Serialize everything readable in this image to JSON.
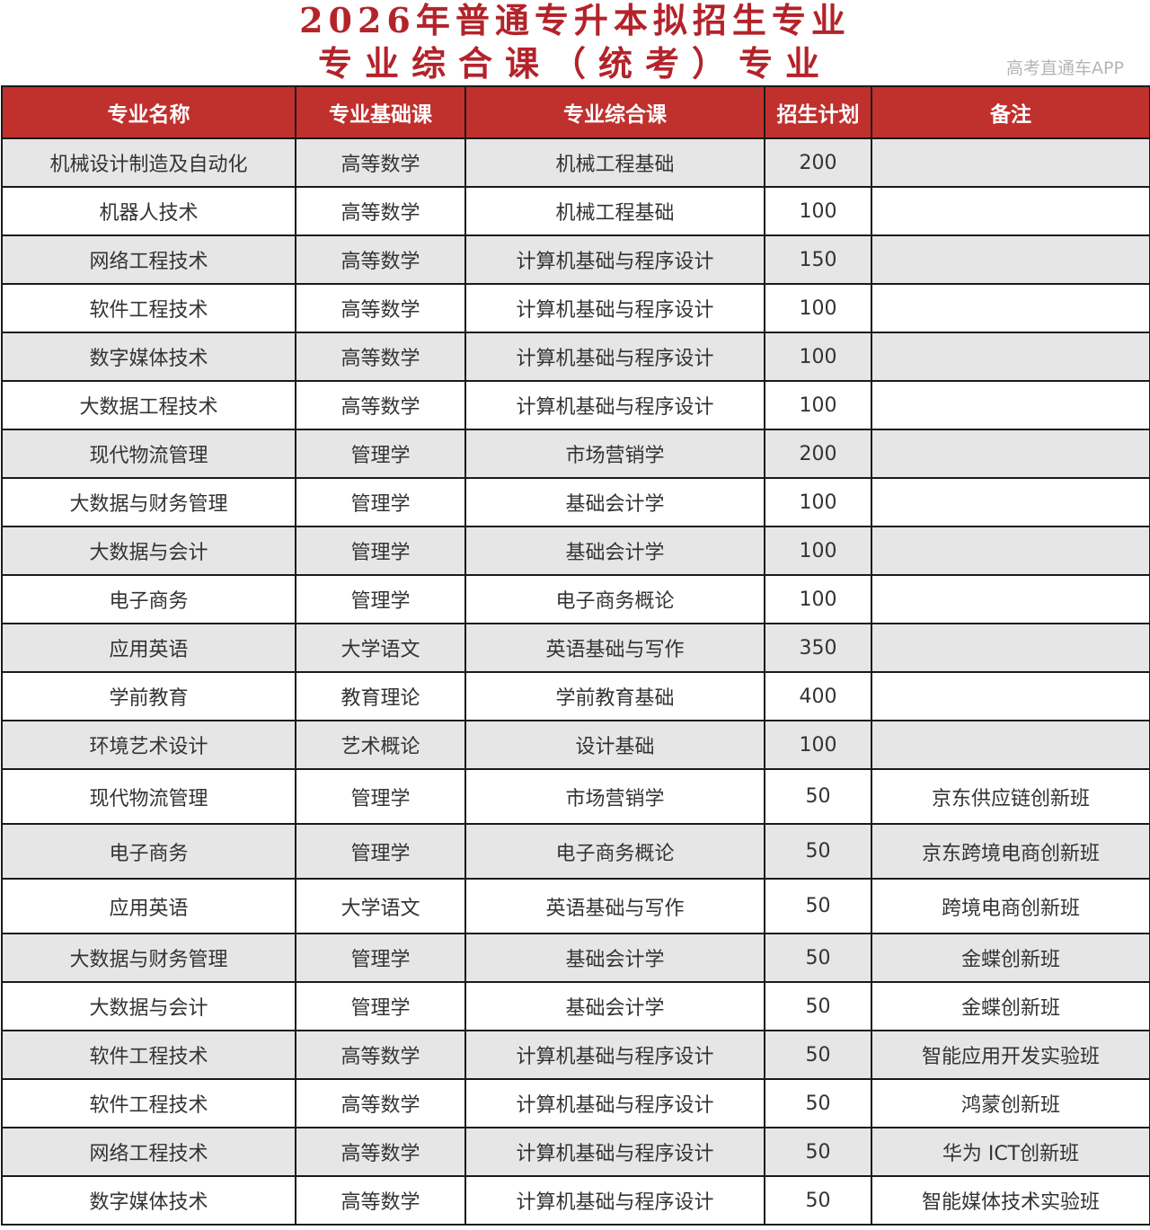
{
  "title_line1": "2026年普通专升本拟招生专业",
  "title_line2": "专业综合课（统考）专业",
  "accent_color": "#c0302d",
  "columns": [
    "专业名称",
    "专业基础课",
    "专业综合课",
    "招生计划",
    "备注"
  ],
  "rows": [
    [
      "机械设计制造及自动化",
      "高等数学",
      "机械工程基础",
      "200",
      ""
    ],
    [
      "机器人技术",
      "高等数学",
      "机械工程基础",
      "100",
      ""
    ],
    [
      "网络工程技术",
      "高等数学",
      "计算机基础与程序设计",
      "150",
      ""
    ],
    [
      "软件工程技术",
      "高等数学",
      "计算机基础与程序设计",
      "100",
      ""
    ],
    [
      "数字媒体技术",
      "高等数学",
      "计算机基础与程序设计",
      "100",
      ""
    ],
    [
      "大数据工程技术",
      "高等数学",
      "计算机基础与程序设计",
      "100",
      ""
    ],
    [
      "现代物流管理",
      "管理学",
      "市场营销学",
      "200",
      ""
    ],
    [
      "大数据与财务管理",
      "管理学",
      "基础会计学",
      "100",
      ""
    ],
    [
      "大数据与会计",
      "管理学",
      "基础会计学",
      "100",
      ""
    ],
    [
      "电子商务",
      "管理学",
      "电子商务概论",
      "100",
      ""
    ],
    [
      "应用英语",
      "大学语文",
      "英语基础与写作",
      "350",
      ""
    ],
    [
      "学前教育",
      "教育理论",
      "学前教育基础",
      "400",
      ""
    ],
    [
      "环境艺术设计",
      "艺术概论",
      "设计基础",
      "100",
      ""
    ],
    [
      "现代物流管理",
      "管理学",
      "市场营销学",
      "50",
      "京东供应链创新班"
    ],
    [
      "电子商务",
      "管理学",
      "电子商务概论",
      "50",
      "京东跨境电商创新班"
    ],
    [
      "应用英语",
      "大学语文",
      "英语基础与写作",
      "50",
      "跨境电商创新班"
    ],
    [
      "大数据与财务管理",
      "管理学",
      "基础会计学",
      "50",
      "金蝶创新班"
    ],
    [
      "大数据与会计",
      "管理学",
      "基础会计学",
      "50",
      "金蝶创新班"
    ],
    [
      "软件工程技术",
      "高等数学",
      "计算机基础与程序设计",
      "50",
      "智能应用开发实验班"
    ],
    [
      "软件工程技术",
      "高等数学",
      "计算机基础与程序设计",
      "50",
      "鸿蒙创新班"
    ],
    [
      "网络工程技术",
      "高等数学",
      "计算机基础与程序设计",
      "50",
      "华为 ICT创新班"
    ],
    [
      "数字媒体技术",
      "高等数学",
      "计算机基础与程序设计",
      "50",
      "智能媒体技术实验班"
    ]
  ],
  "watermark": "高考直通车APP"
}
